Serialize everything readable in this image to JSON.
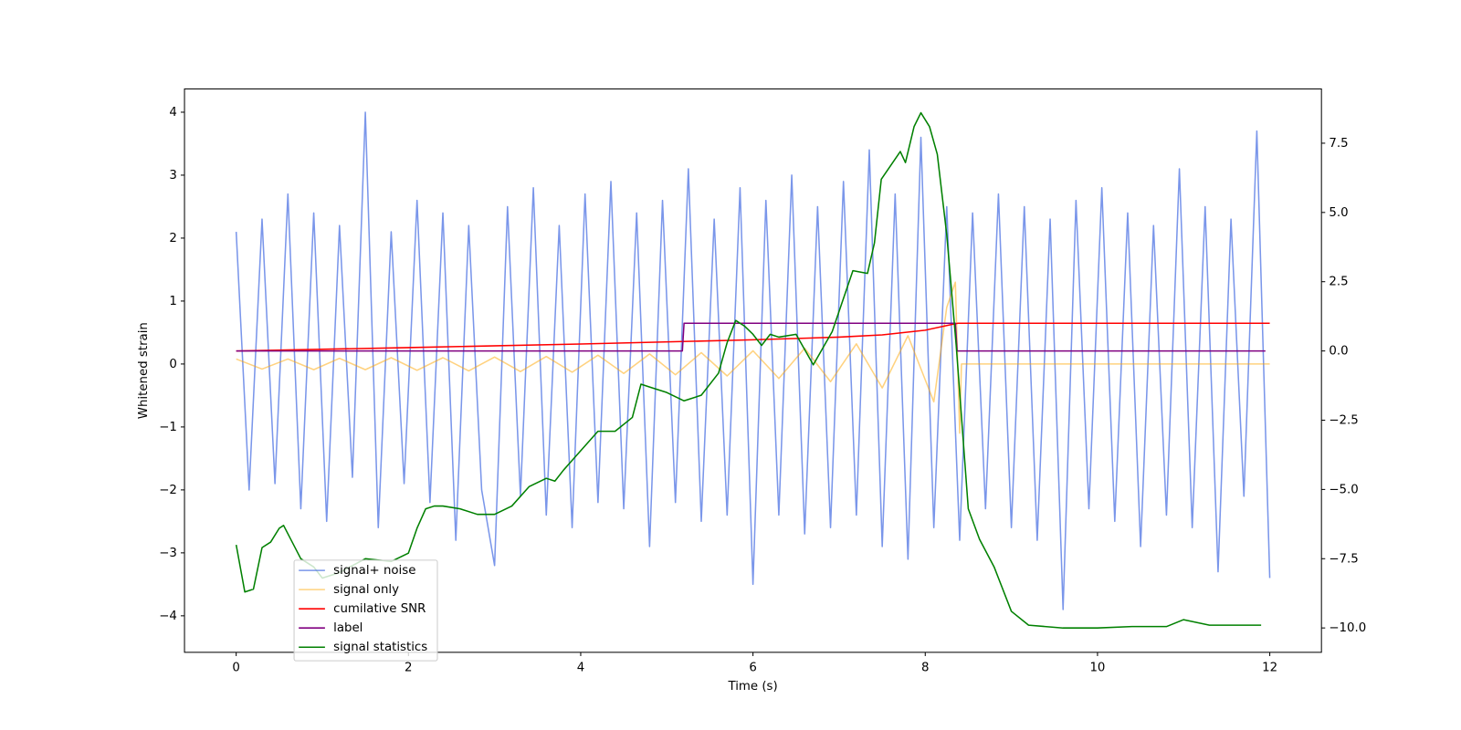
{
  "chart_data": {
    "type": "line",
    "xlabel": "Time (s)",
    "ylabel": "Whitened strain",
    "xlim": [
      -0.6,
      12.6
    ],
    "ylim": [
      -4.58,
      4.37
    ],
    "y2lim": [
      -10.88,
      9.46
    ],
    "xticks": [
      0,
      2,
      4,
      6,
      8,
      10,
      12
    ],
    "yticks": [
      {
        "value": -4,
        "label": "−4"
      },
      {
        "value": -3,
        "label": "−3"
      },
      {
        "value": -2,
        "label": "−2"
      },
      {
        "value": -1,
        "label": "−1"
      },
      0,
      1,
      2,
      3,
      4
    ],
    "y2ticks": [
      {
        "value": -10,
        "label": "−10.0"
      },
      {
        "value": -7.5,
        "label": "−7.5"
      },
      {
        "value": -5,
        "label": "−5.0"
      },
      {
        "value": -2.5,
        "label": "−2.5"
      },
      {
        "value": 0,
        "label": "0.0"
      },
      2.5,
      {
        "value": 5,
        "label": "5.0"
      },
      7.5
    ],
    "legend": "lower left",
    "series": [
      {
        "name": "signal+ noise",
        "color": "#4169e1",
        "alpha": 0.7,
        "x": [
          0,
          0.15,
          0.3,
          0.45,
          0.6,
          0.75,
          0.9,
          1.05,
          1.2,
          1.35,
          1.5,
          1.65,
          1.8,
          1.95,
          2.1,
          2.25,
          2.4,
          2.55,
          2.7,
          2.85,
          3,
          3.15,
          3.3,
          3.45,
          3.6,
          3.75,
          3.9,
          4.05,
          4.2,
          4.35,
          4.5,
          4.65,
          4.8,
          4.95,
          5.1,
          5.25,
          5.4,
          5.55,
          5.7,
          5.85,
          6,
          6.15,
          6.3,
          6.45,
          6.6,
          6.75,
          6.9,
          7.05,
          7.2,
          7.35,
          7.5,
          7.65,
          7.8,
          7.95,
          8.1,
          8.25,
          8.4,
          8.55,
          8.7,
          8.85,
          9,
          9.15,
          9.3,
          9.45,
          9.6,
          9.75,
          9.9,
          10.05,
          10.2,
          10.35,
          10.5,
          10.65,
          10.8,
          10.95,
          11.1,
          11.25,
          11.4,
          11.55,
          11.7,
          11.85,
          12
        ],
        "values": [
          2.1,
          -2.0,
          2.3,
          -1.9,
          2.7,
          -2.3,
          2.4,
          -2.5,
          2.2,
          -1.8,
          4.0,
          -2.6,
          2.1,
          -1.9,
          2.6,
          -2.2,
          2.4,
          -2.8,
          2.2,
          -2.0,
          -3.2,
          2.5,
          -2.1,
          2.8,
          -2.4,
          2.2,
          -2.6,
          2.7,
          -2.2,
          2.9,
          -2.3,
          2.4,
          -2.9,
          2.6,
          -2.2,
          3.1,
          -2.5,
          2.3,
          -2.4,
          2.8,
          -3.5,
          2.6,
          -2.4,
          3.0,
          -2.7,
          2.5,
          -2.6,
          2.9,
          -2.4,
          3.4,
          -2.9,
          2.7,
          -3.1,
          3.6,
          -2.6,
          2.5,
          -2.8,
          2.4,
          -2.3,
          2.7,
          -2.6,
          2.5,
          -2.8,
          2.3,
          -3.9,
          2.6,
          -2.3,
          2.8,
          -2.5,
          2.4,
          -2.9,
          2.2,
          -2.4,
          3.1,
          -2.6,
          2.5,
          -3.3,
          2.3,
          -2.1,
          3.7,
          -3.4
        ]
      },
      {
        "name": "signal only",
        "color": "#ffa500",
        "alpha": 0.5,
        "x": [
          0,
          0.3,
          0.6,
          0.9,
          1.2,
          1.5,
          1.8,
          2.1,
          2.4,
          2.7,
          3,
          3.3,
          3.6,
          3.9,
          4.2,
          4.5,
          4.8,
          5.1,
          5.4,
          5.7,
          6,
          6.3,
          6.6,
          6.9,
          7.2,
          7.5,
          7.8,
          8.1,
          8.25,
          8.35,
          8.4,
          8.42,
          12
        ],
        "values": [
          0.08,
          -0.08,
          0.08,
          -0.09,
          0.09,
          -0.09,
          0.1,
          -0.1,
          0.1,
          -0.11,
          0.11,
          -0.12,
          0.12,
          -0.13,
          0.14,
          -0.15,
          0.16,
          -0.17,
          0.18,
          -0.19,
          0.21,
          -0.23,
          0.25,
          -0.28,
          0.32,
          -0.38,
          0.45,
          -0.6,
          0.9,
          1.3,
          -1.1,
          0,
          0
        ]
      },
      {
        "name": "cumilative SNR",
        "color": "#ff0000",
        "axis": "y2",
        "x": [
          0,
          2,
          4,
          6,
          7,
          7.5,
          8,
          8.3,
          8.38,
          12
        ],
        "values": [
          0,
          0.12,
          0.25,
          0.4,
          0.5,
          0.58,
          0.75,
          0.95,
          1.0,
          1.0
        ]
      },
      {
        "name": "label",
        "color": "#800080",
        "axis": "y2",
        "x": [
          0,
          5.18,
          5.2,
          8.35,
          8.37,
          11.95
        ],
        "values": [
          0,
          0,
          1,
          1,
          0,
          0
        ]
      },
      {
        "name": "signal statistics",
        "color": "#008000",
        "axis": "y2",
        "x": [
          0,
          0.1,
          0.2,
          0.3,
          0.4,
          0.5,
          0.55,
          0.65,
          0.75,
          0.9,
          1.0,
          1.2,
          1.5,
          1.8,
          2.0,
          2.1,
          2.2,
          2.3,
          2.4,
          2.6,
          2.8,
          3.0,
          3.2,
          3.4,
          3.6,
          3.7,
          3.8,
          4.0,
          4.2,
          4.4,
          4.6,
          4.7,
          4.8,
          5.0,
          5.2,
          5.4,
          5.6,
          5.7,
          5.8,
          5.9,
          6.0,
          6.1,
          6.2,
          6.3,
          6.5,
          6.7,
          6.92,
          7.16,
          7.33,
          7.41,
          7.49,
          7.71,
          7.77,
          7.87,
          7.95,
          8.05,
          8.14,
          8.25,
          8.36,
          8.5,
          8.63,
          8.8,
          9.0,
          9.2,
          9.6,
          10.0,
          10.4,
          10.8,
          11.0,
          11.3,
          11.9
        ],
        "values": [
          -7.0,
          -8.7,
          -8.6,
          -7.1,
          -6.9,
          -6.4,
          -6.3,
          -6.9,
          -7.5,
          -7.8,
          -8.2,
          -8.0,
          -7.5,
          -7.6,
          -7.3,
          -6.4,
          -5.7,
          -5.6,
          -5.6,
          -5.7,
          -5.9,
          -5.9,
          -5.6,
          -4.9,
          -4.6,
          -4.7,
          -4.3,
          -3.6,
          -2.9,
          -2.9,
          -2.4,
          -1.2,
          -1.3,
          -1.5,
          -1.8,
          -1.6,
          -0.8,
          0.3,
          1.1,
          0.9,
          0.6,
          0.2,
          0.6,
          0.5,
          0.6,
          -0.5,
          0.7,
          2.9,
          2.8,
          3.9,
          6.2,
          7.2,
          6.8,
          8.1,
          8.6,
          8.1,
          7.1,
          4.2,
          0.2,
          -5.7,
          -6.8,
          -7.8,
          -9.4,
          -9.9,
          -10.0,
          -10.0,
          -9.95,
          -9.95,
          -9.7,
          -9.9,
          -9.9
        ]
      }
    ]
  }
}
